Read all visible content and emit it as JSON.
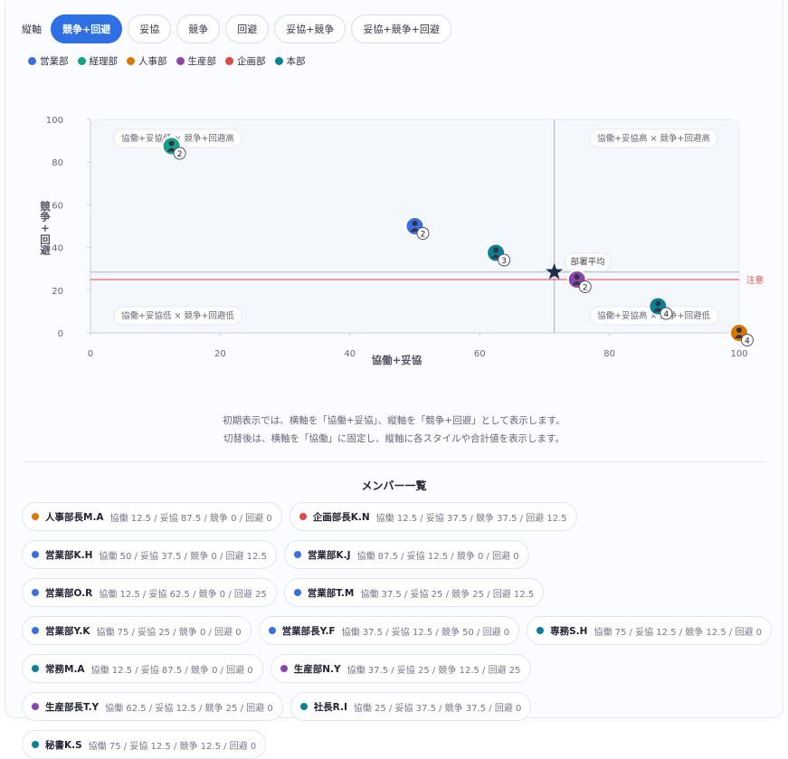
{
  "toolbar": {
    "label": "縦軸",
    "options": [
      "競争+回避",
      "妥協",
      "競争",
      "回避",
      "妥協+競争",
      "妥協+競争+回避"
    ],
    "active": 0
  },
  "chart_data": {
    "type": "scatter",
    "legend": [
      {
        "name": "営業部",
        "color": "#3b6fe0"
      },
      {
        "name": "経理部",
        "color": "#16a085"
      },
      {
        "name": "人事部",
        "color": "#d97706"
      },
      {
        "name": "生産部",
        "color": "#8e44ad"
      },
      {
        "name": "企画部",
        "color": "#e04848"
      },
      {
        "name": "本部",
        "color": "#0e8096"
      }
    ],
    "x_label": "協働+妥協",
    "y_label": "競争+回避",
    "xlim": [
      0,
      100
    ],
    "ylim": [
      0,
      100
    ],
    "xticks": [
      0,
      20,
      40,
      60,
      80,
      100
    ],
    "yticks": [
      0,
      20,
      40,
      60,
      80,
      100
    ],
    "quadrant_labels": [
      "協働+妥協低 × 競争+回避高",
      "協働+妥協高 × 競争+回避高",
      "協働+妥協低 × 競争+回避低",
      "協働+妥協高 × 競争+回避低"
    ],
    "points": [
      {
        "x": 12.5,
        "y": 87.5,
        "count": 2,
        "color": "#16a085"
      },
      {
        "x": 50,
        "y": 50,
        "count": 2,
        "color": "#3b6fe0"
      },
      {
        "x": 62.5,
        "y": 37.5,
        "count": 3,
        "color": "#0e8096"
      },
      {
        "x": 75,
        "y": 25,
        "count": 2,
        "color": "#8e44ad"
      },
      {
        "x": 87.5,
        "y": 12.5,
        "count": 4,
        "color": "#0e8096"
      },
      {
        "x": 100,
        "y": 0,
        "count": 4,
        "color": "#d97706"
      }
    ],
    "average": {
      "label": "部署平均",
      "x": 71.5,
      "y": 28.5
    },
    "threshold": {
      "label": "注意",
      "y": 25,
      "color": "#e04848"
    }
  },
  "description": [
    "初期表示では、横軸を「協働+妥協」、縦軸を「競争+回避」として表示します。",
    "切替後は、横軸を「協働」に固定し、縦軸に各スタイルや合計値を表示します。"
  ],
  "members": {
    "title": "メンバー一覧",
    "items": [
      {
        "name": "人事部長M.A",
        "color": "#d97706",
        "stats": "協働 12.5 / 妥協 87.5 / 競争 0 / 回避 0"
      },
      {
        "name": "企画部長K.N",
        "color": "#e04848",
        "stats": "協働 12.5 / 妥協 37.5 / 競争 37.5 / 回避 12.5"
      },
      {
        "name": "営業部K.H",
        "color": "#3b6fe0",
        "stats": "協働 50 / 妥協 37.5 / 競争 0 / 回避 12.5"
      },
      {
        "name": "営業部K.J",
        "color": "#3b6fe0",
        "stats": "協働 87.5 / 妥協 12.5 / 競争 0 / 回避 0"
      },
      {
        "name": "営業部O.R",
        "color": "#3b6fe0",
        "stats": "協働 12.5 / 妥協 62.5 / 競争 0 / 回避 25"
      },
      {
        "name": "営業部T.M",
        "color": "#3b6fe0",
        "stats": "協働 37.5 / 妥協 25 / 競争 25 / 回避 12.5"
      },
      {
        "name": "営業部Y.K",
        "color": "#3b6fe0",
        "stats": "協働 75 / 妥協 25 / 競争 0 / 回避 0"
      },
      {
        "name": "営業部長Y.F",
        "color": "#3b6fe0",
        "stats": "協働 37.5 / 妥協 12.5 / 競争 50 / 回避 0"
      },
      {
        "name": "専務S.H",
        "color": "#0e8096",
        "stats": "協働 75 / 妥協 12.5 / 競争 12.5 / 回避 0"
      },
      {
        "name": "常務M.A",
        "color": "#0e8096",
        "stats": "協働 12.5 / 妥協 87.5 / 競争 0 / 回避 0"
      },
      {
        "name": "生産部N.Y",
        "color": "#8e44ad",
        "stats": "協働 37.5 / 妥協 25 / 競争 12.5 / 回避 25"
      },
      {
        "name": "生産部長T.Y",
        "color": "#8e44ad",
        "stats": "協働 62.5 / 妥協 12.5 / 競争 25 / 回避 0"
      },
      {
        "name": "社長R.I",
        "color": "#0e8096",
        "stats": "協働 25 / 妥協 37.5 / 競争 37.5 / 回避 0"
      },
      {
        "name": "秘書K.S",
        "color": "#0e8096",
        "stats": "協働 75 / 妥協 12.5 / 競争 12.5 / 回避 0"
      }
    ]
  }
}
